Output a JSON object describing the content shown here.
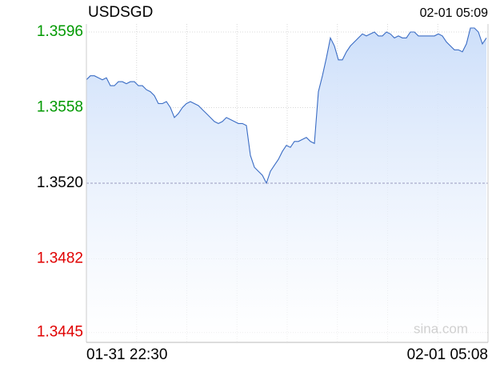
{
  "chart_data": {
    "type": "line",
    "title": "USDSGD",
    "time": "02-01 05:09",
    "watermark": "sina.com",
    "x_labels": [
      "01-31 22:30",
      "02-01 05:08"
    ],
    "values": [
      1.3572,
      1.3574,
      1.3574,
      1.3573,
      1.3572,
      1.3573,
      1.3569,
      1.3569,
      1.3571,
      1.3571,
      1.357,
      1.3571,
      1.3571,
      1.3569,
      1.3569,
      1.3567,
      1.3566,
      1.3564,
      1.356,
      1.356,
      1.3561,
      1.3558,
      1.3553,
      1.3555,
      1.3558,
      1.356,
      1.3561,
      1.356,
      1.3559,
      1.3557,
      1.3555,
      1.3553,
      1.3551,
      1.355,
      1.3551,
      1.3553,
      1.3552,
      1.3551,
      1.355,
      1.355,
      1.3549,
      1.3534,
      1.3528,
      1.3526,
      1.3524,
      1.352,
      1.3526,
      1.3529,
      1.3532,
      1.3536,
      1.3539,
      1.3538,
      1.3541,
      1.3541,
      1.3542,
      1.3543,
      1.3541,
      1.354,
      1.3566,
      1.3574,
      1.3583,
      1.3593,
      1.3589,
      1.3582,
      1.3582,
      1.3586,
      1.3589,
      1.3591,
      1.3593,
      1.3595,
      1.3594,
      1.3595,
      1.3596,
      1.3594,
      1.3594,
      1.3596,
      1.3595,
      1.3593,
      1.3594,
      1.3593,
      1.3593,
      1.3596,
      1.3596,
      1.3594,
      1.3594,
      1.3594,
      1.3594,
      1.3594,
      1.3595,
      1.3594,
      1.3591,
      1.3589,
      1.3587,
      1.3587,
      1.3586,
      1.359,
      1.3598,
      1.3598,
      1.3596,
      1.359,
      1.3593
    ],
    "color": "#3a6cc4",
    "fill_color": "#cddffa",
    "prev_close": 1.352,
    "up_color": "#009900",
    "down_color": "#e00000",
    "ylim": [
      1.344,
      1.36
    ],
    "yticks": [
      1.3596,
      1.3558,
      {
        "value": 1.352,
        "label": "1.3520"
      },
      1.3482,
      1.3445
    ],
    "grid": true
  }
}
